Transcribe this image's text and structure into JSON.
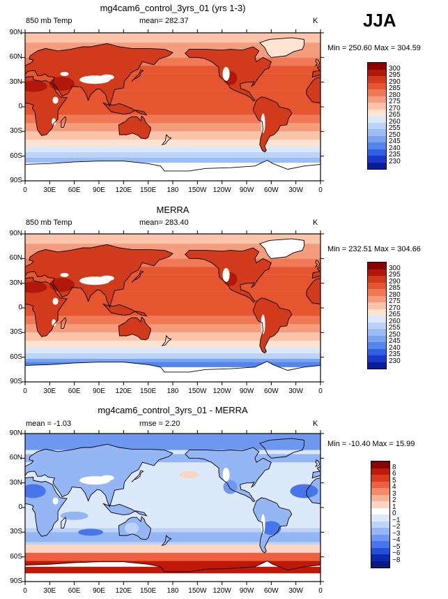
{
  "season": "JJA",
  "x_ticks": [
    "0",
    "30E",
    "60E",
    "90E",
    "120E",
    "150E",
    "180",
    "150W",
    "120W",
    "90W",
    "60W",
    "30W",
    "0"
  ],
  "y_ticks": [
    "90N",
    "60N",
    "30N",
    "0",
    "30S",
    "60S",
    "90S"
  ],
  "panels": [
    {
      "title": "mg4cam6_control_3yrs_01 (yrs 1-3)",
      "left_label": "850 mb Temp",
      "center_label": "mean= 282.37",
      "right_label": "K",
      "min_max": "Min = 250.60 Max = 304.59",
      "colorbar_levels": [
        "300",
        "295",
        "290",
        "285",
        "280",
        "275",
        "270",
        "265",
        "260",
        "255",
        "250",
        "245",
        "240",
        "235",
        "230"
      ],
      "colors": {
        "ocean": "#ee6a4a",
        "land_hot": "#d23a1c",
        "cold": "#c8dcfa",
        "snow": "#ffffff"
      }
    },
    {
      "title": "MERRA",
      "left_label": "850 mb Temp",
      "center_label": "mean= 283.40",
      "right_label": "K",
      "min_max": "Min = 232.51 Max = 304.66",
      "colorbar_levels": [
        "300",
        "295",
        "290",
        "285",
        "280",
        "275",
        "270",
        "265",
        "260",
        "255",
        "250",
        "245",
        "240",
        "235",
        "230"
      ],
      "colors": {
        "ocean": "#ee6a4a",
        "land_hot": "#c93012",
        "cold": "#6e9cf0",
        "snow": "#ffffff"
      }
    },
    {
      "title": "mg4cam6_control_3yrs_01 - MERRA",
      "left_label": "mean =  -1.03",
      "center_label": "rmse =    2.20",
      "right_label": "K",
      "min_max": "Min = -10.40 Max =  15.99",
      "colorbar_levels": [
        "8",
        "6",
        "5",
        "4",
        "3",
        "2",
        "1",
        "0",
        "−1",
        "−2",
        "−3",
        "−4",
        "−5",
        "−6",
        "−8"
      ],
      "colors": {
        "ocean": "#c8dcfa",
        "land_hot": "#1e50e0",
        "cold": "#e05030",
        "snow": "#ffffff"
      }
    }
  ],
  "temp_palette": [
    "#8b0000",
    "#b2180a",
    "#d23a1c",
    "#e45530",
    "#ef7a55",
    "#f59c7c",
    "#fbc3a8",
    "#fde3d2",
    "#dce9fb",
    "#bcd3f8",
    "#9bbcf4",
    "#7aa3f0",
    "#5485ec",
    "#2f5fe3",
    "#1838c8",
    "#0a1c96"
  ],
  "diff_palette": [
    "#8b0000",
    "#c01808",
    "#dc3a1c",
    "#ec6040",
    "#f48a68",
    "#f8b294",
    "#fbd6c2",
    "#ffffff",
    "#dce9fb",
    "#bcd3f8",
    "#95b6f4",
    "#6e97ef",
    "#4676ea",
    "#2250d8",
    "#0c28b0",
    "#081a80"
  ]
}
